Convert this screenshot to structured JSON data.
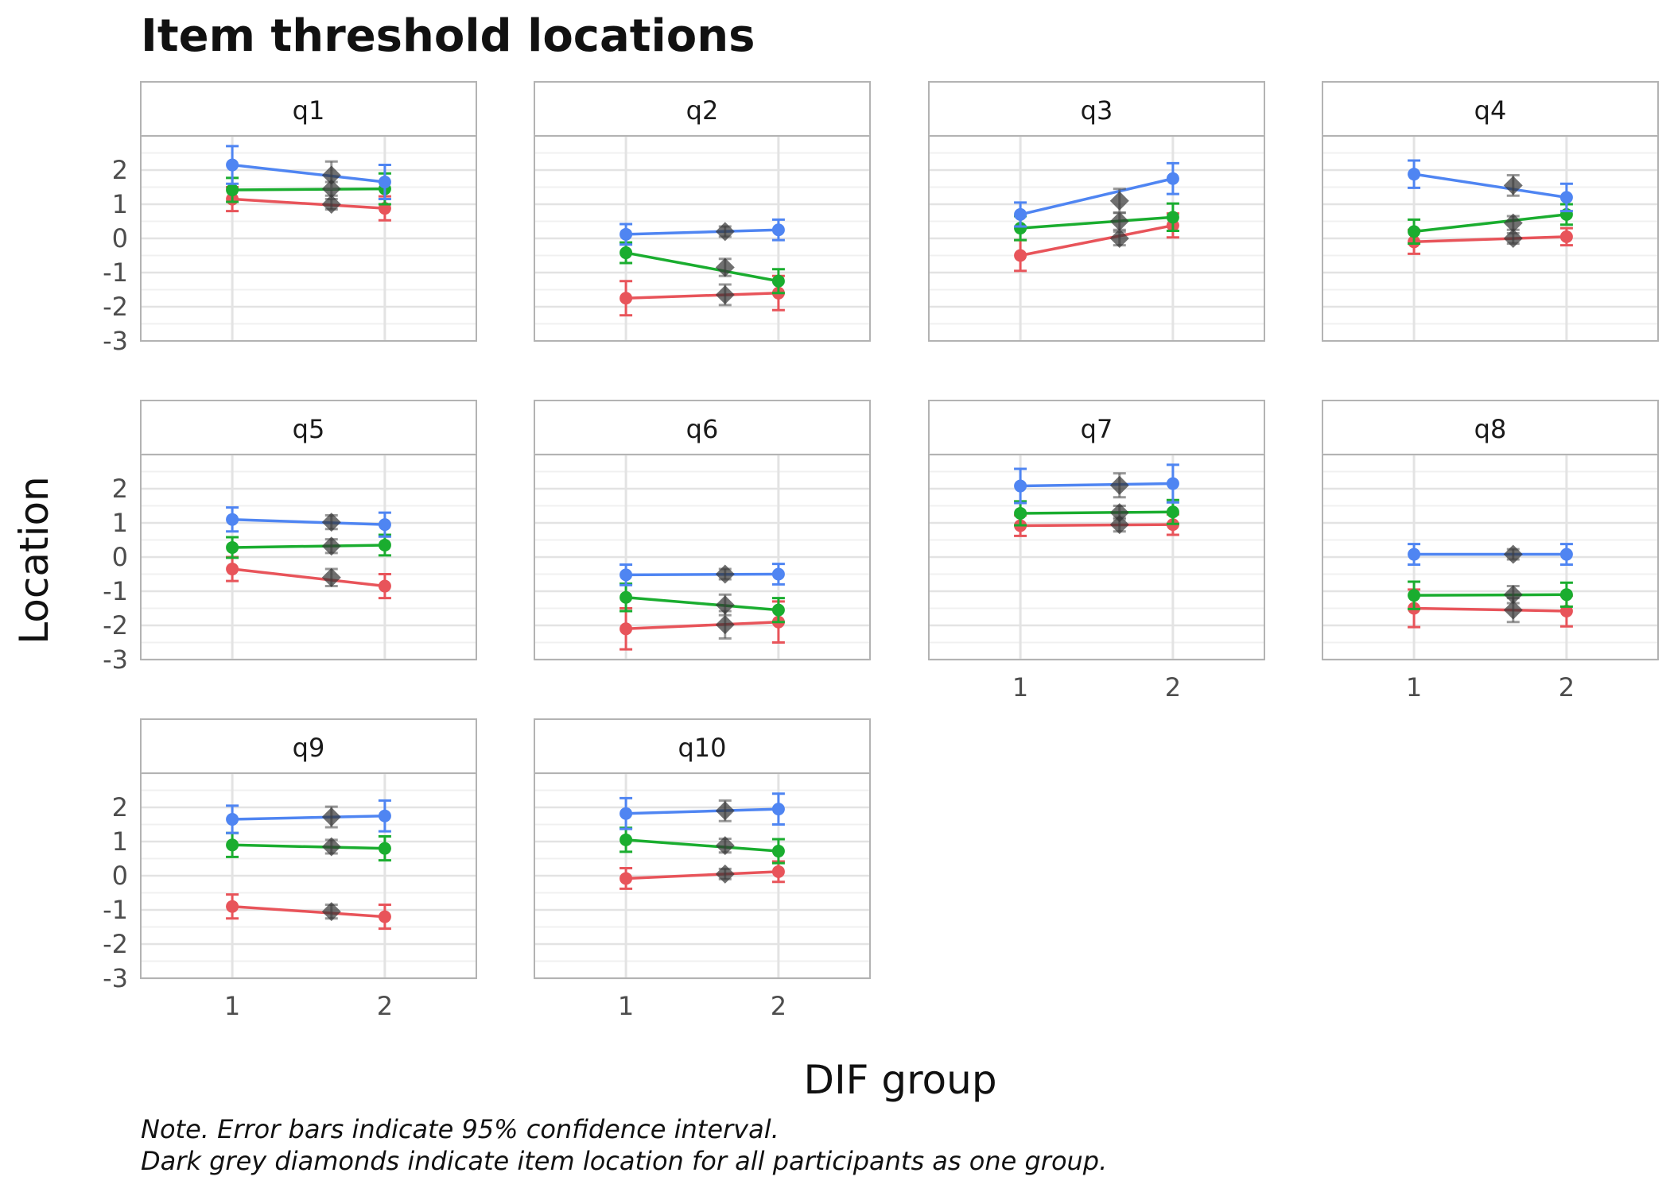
{
  "chart_data": {
    "type": "line",
    "title": "Item threshold locations",
    "xlabel": "DIF group",
    "ylabel": "Location",
    "x_ticks": [
      "1",
      "2"
    ],
    "y_ticks": [
      "2",
      "1",
      "0",
      "-1",
      "-2",
      "-3"
    ],
    "ylim": [
      -3,
      3
    ],
    "xlim": [
      0.4,
      2.6
    ],
    "all_participants_x": 1.65,
    "grid": true,
    "colors": {
      "threshold_1": "#e8545a",
      "threshold_2": "#1aad2f",
      "threshold_3": "#4f85f2",
      "all_participants": "#333333"
    },
    "note": [
      "Note. Error bars indicate 95% confidence interval.",
      "Dark grey diamonds indicate item location for all participants as one group."
    ],
    "panels": [
      {
        "label": "q1",
        "series": [
          {
            "color_key": "threshold_1",
            "values": [
              1.15,
              0.88
            ],
            "errors": [
              0.35,
              0.35
            ],
            "overall": 1.0,
            "overall_error": 0.15
          },
          {
            "color_key": "threshold_2",
            "values": [
              1.42,
              1.45
            ],
            "errors": [
              0.35,
              0.45
            ],
            "overall": 1.45,
            "overall_error": 0.2
          },
          {
            "color_key": "threshold_3",
            "values": [
              2.15,
              1.65
            ],
            "errors": [
              0.55,
              0.5
            ],
            "overall": 1.85,
            "overall_error": 0.4
          }
        ]
      },
      {
        "label": "q2",
        "series": [
          {
            "color_key": "threshold_1",
            "values": [
              -1.75,
              -1.6
            ],
            "errors": [
              0.5,
              0.5
            ],
            "overall": -1.65,
            "overall_error": 0.3
          },
          {
            "color_key": "threshold_2",
            "values": [
              -0.42,
              -1.25
            ],
            "errors": [
              0.3,
              0.35
            ],
            "overall": -0.85,
            "overall_error": 0.25
          },
          {
            "color_key": "threshold_3",
            "values": [
              0.12,
              0.25
            ],
            "errors": [
              0.3,
              0.3
            ],
            "overall": 0.2,
            "overall_error": 0.15
          }
        ]
      },
      {
        "label": "q3",
        "series": [
          {
            "color_key": "threshold_1",
            "values": [
              -0.5,
              0.38
            ],
            "errors": [
              0.45,
              0.35
            ],
            "overall": 0.0,
            "overall_error": 0.2
          },
          {
            "color_key": "threshold_2",
            "values": [
              0.3,
              0.62
            ],
            "errors": [
              0.35,
              0.4
            ],
            "overall": 0.5,
            "overall_error": 0.25
          },
          {
            "color_key": "threshold_3",
            "values": [
              0.7,
              1.75
            ],
            "errors": [
              0.35,
              0.45
            ],
            "overall": 1.1,
            "overall_error": 0.35
          }
        ]
      },
      {
        "label": "q4",
        "series": [
          {
            "color_key": "threshold_1",
            "values": [
              -0.1,
              0.05
            ],
            "errors": [
              0.35,
              0.25
            ],
            "overall": 0.0,
            "overall_error": 0.15
          },
          {
            "color_key": "threshold_2",
            "values": [
              0.2,
              0.7
            ],
            "errors": [
              0.35,
              0.3
            ],
            "overall": 0.45,
            "overall_error": 0.2
          },
          {
            "color_key": "threshold_3",
            "values": [
              1.88,
              1.2
            ],
            "errors": [
              0.4,
              0.4
            ],
            "overall": 1.55,
            "overall_error": 0.3
          }
        ]
      },
      {
        "label": "q5",
        "series": [
          {
            "color_key": "threshold_1",
            "values": [
              -0.35,
              -0.85
            ],
            "errors": [
              0.35,
              0.35
            ],
            "overall": -0.6,
            "overall_error": 0.25
          },
          {
            "color_key": "threshold_2",
            "values": [
              0.28,
              0.35
            ],
            "errors": [
              0.3,
              0.3
            ],
            "overall": 0.32,
            "overall_error": 0.2
          },
          {
            "color_key": "threshold_3",
            "values": [
              1.1,
              0.95
            ],
            "errors": [
              0.35,
              0.35
            ],
            "overall": 1.02,
            "overall_error": 0.2
          }
        ]
      },
      {
        "label": "q6",
        "series": [
          {
            "color_key": "threshold_1",
            "values": [
              -2.1,
              -1.9
            ],
            "errors": [
              0.6,
              0.6
            ],
            "overall": -1.98,
            "overall_error": 0.4
          },
          {
            "color_key": "threshold_2",
            "values": [
              -1.18,
              -1.55
            ],
            "errors": [
              0.4,
              0.35
            ],
            "overall": -1.4,
            "overall_error": 0.3
          },
          {
            "color_key": "threshold_3",
            "values": [
              -0.52,
              -0.5
            ],
            "errors": [
              0.3,
              0.3
            ],
            "overall": -0.5,
            "overall_error": 0.15
          }
        ]
      },
      {
        "label": "q7",
        "series": [
          {
            "color_key": "threshold_1",
            "values": [
              0.92,
              0.95
            ],
            "errors": [
              0.3,
              0.3
            ],
            "overall": 0.95,
            "overall_error": 0.2
          },
          {
            "color_key": "threshold_2",
            "values": [
              1.28,
              1.32
            ],
            "errors": [
              0.35,
              0.35
            ],
            "overall": 1.3,
            "overall_error": 0.2
          },
          {
            "color_key": "threshold_3",
            "values": [
              2.08,
              2.15
            ],
            "errors": [
              0.5,
              0.55
            ],
            "overall": 2.1,
            "overall_error": 0.35
          }
        ]
      },
      {
        "label": "q8",
        "series": [
          {
            "color_key": "threshold_1",
            "values": [
              -1.5,
              -1.58
            ],
            "errors": [
              0.55,
              0.45
            ],
            "overall": -1.55,
            "overall_error": 0.35
          },
          {
            "color_key": "threshold_2",
            "values": [
              -1.12,
              -1.1
            ],
            "errors": [
              0.4,
              0.35
            ],
            "overall": -1.1,
            "overall_error": 0.25
          },
          {
            "color_key": "threshold_3",
            "values": [
              0.08,
              0.08
            ],
            "errors": [
              0.3,
              0.3
            ],
            "overall": 0.08,
            "overall_error": 0.15
          }
        ]
      },
      {
        "label": "q9",
        "series": [
          {
            "color_key": "threshold_1",
            "values": [
              -0.9,
              -1.2
            ],
            "errors": [
              0.35,
              0.35
            ],
            "overall": -1.05,
            "overall_error": 0.2
          },
          {
            "color_key": "threshold_2",
            "values": [
              0.9,
              0.8
            ],
            "errors": [
              0.35,
              0.35
            ],
            "overall": 0.85,
            "overall_error": 0.2
          },
          {
            "color_key": "threshold_3",
            "values": [
              1.65,
              1.75
            ],
            "errors": [
              0.4,
              0.45
            ],
            "overall": 1.72,
            "overall_error": 0.3
          }
        ]
      },
      {
        "label": "q10",
        "series": [
          {
            "color_key": "threshold_1",
            "values": [
              -0.08,
              0.12
            ],
            "errors": [
              0.3,
              0.3
            ],
            "overall": 0.05,
            "overall_error": 0.15
          },
          {
            "color_key": "threshold_2",
            "values": [
              1.05,
              0.72
            ],
            "errors": [
              0.35,
              0.35
            ],
            "overall": 0.88,
            "overall_error": 0.2
          },
          {
            "color_key": "threshold_3",
            "values": [
              1.82,
              1.95
            ],
            "errors": [
              0.45,
              0.45
            ],
            "overall": 1.9,
            "overall_error": 0.3
          }
        ]
      }
    ]
  }
}
